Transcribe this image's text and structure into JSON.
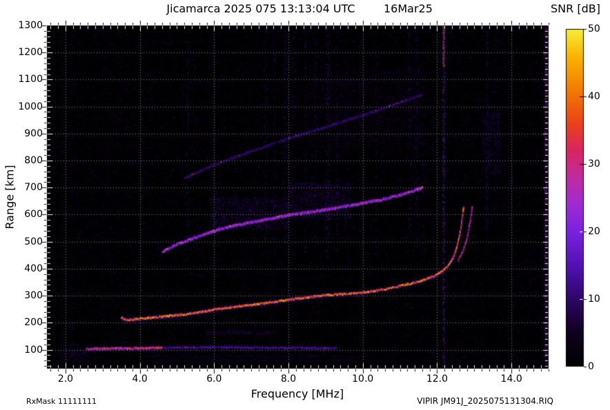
{
  "header": {
    "title": "Jicamarca 2025 075 13:13:04 UTC",
    "date": "16Mar25",
    "colorbar_title": "SNR [dB]"
  },
  "footer": {
    "rx_mask": "RxMask 11111111",
    "file_id": "VIPIR  JM91J_2025075131304.RIQ"
  },
  "axes": {
    "x_label": "Frequency [MHz]",
    "y_label": "Range [km]",
    "x_ticks": [
      {
        "v": 2,
        "label": "2.0"
      },
      {
        "v": 4,
        "label": "4.0"
      },
      {
        "v": 6,
        "label": "6.0"
      },
      {
        "v": 8,
        "label": "8.0"
      },
      {
        "v": 10,
        "label": "10.0"
      },
      {
        "v": 12,
        "label": "12.0"
      },
      {
        "v": 14,
        "label": "14.0"
      }
    ],
    "y_ticks": [
      {
        "v": 100,
        "label": "100"
      },
      {
        "v": 200,
        "label": "200"
      },
      {
        "v": 300,
        "label": "300"
      },
      {
        "v": 400,
        "label": "400"
      },
      {
        "v": 500,
        "label": "500"
      },
      {
        "v": 600,
        "label": "600"
      },
      {
        "v": 700,
        "label": "700"
      },
      {
        "v": 800,
        "label": "800"
      },
      {
        "v": 900,
        "label": "900"
      },
      {
        "v": 1000,
        "label": "1000"
      },
      {
        "v": 1100,
        "label": "1100"
      },
      {
        "v": 1200,
        "label": "1200"
      },
      {
        "v": 1300,
        "label": "1300"
      }
    ],
    "cb_ticks": [
      {
        "v": 0,
        "label": "0"
      },
      {
        "v": 10,
        "label": "10"
      },
      {
        "v": 20,
        "label": "20"
      },
      {
        "v": 30,
        "label": "30"
      },
      {
        "v": 40,
        "label": "40"
      },
      {
        "v": 50,
        "label": "50"
      }
    ]
  },
  "chart_data": {
    "type": "heatmap",
    "title": "Jicamarca 2025 075 13:13:04 UTC 16Mar25",
    "xlabel": "Frequency [MHz]",
    "ylabel": "Range [km]",
    "xlim": [
      1.5,
      15.0
    ],
    "ylim": [
      30,
      1300
    ],
    "grid": {
      "x_major_mhz": 2,
      "y_major_km": 100,
      "style": "dotted-light"
    },
    "colorbar": {
      "label": "SNR [dB]",
      "min": 0,
      "max": 50
    },
    "colormap": [
      {
        "v": 0,
        "c": "#000000"
      },
      {
        "v": 5,
        "c": "#10001f"
      },
      {
        "v": 10,
        "c": "#2e0668"
      },
      {
        "v": 15,
        "c": "#5212b4"
      },
      {
        "v": 20,
        "c": "#7b22e0"
      },
      {
        "v": 24,
        "c": "#9f2bd2"
      },
      {
        "v": 28,
        "c": "#c02ba0"
      },
      {
        "v": 32,
        "c": "#d92560"
      },
      {
        "v": 36,
        "c": "#e94318"
      },
      {
        "v": 41,
        "c": "#f37c00"
      },
      {
        "v": 46,
        "c": "#f9b500"
      },
      {
        "v": 50,
        "c": "#f4ef3a"
      }
    ],
    "traces": [
      {
        "name": "E-layer echo strong",
        "snr": 34,
        "core_km": 7,
        "halo_km": 22,
        "halo_d": 3,
        "sparkle": 0.1,
        "points": [
          [
            2.55,
            103
          ],
          [
            3.0,
            104
          ],
          [
            3.6,
            105
          ],
          [
            4.1,
            106
          ],
          [
            4.6,
            107
          ]
        ]
      },
      {
        "name": "E-layer echo weak tail",
        "snr": 16,
        "core_km": 6,
        "halo_km": 14,
        "halo_d": 2,
        "sparkle": 0.01,
        "points": [
          [
            4.6,
            107
          ],
          [
            5.6,
            108
          ],
          [
            6.6,
            108
          ],
          [
            7.6,
            107
          ],
          [
            8.6,
            106
          ],
          [
            9.3,
            105
          ]
        ]
      },
      {
        "name": "F-region O-mode first hop",
        "snr": 46,
        "core_km": 6,
        "halo_km": 26,
        "halo_d": 3,
        "sparkle": 0,
        "points": [
          [
            3.5,
            218
          ],
          [
            3.62,
            209
          ],
          [
            4.0,
            215
          ],
          [
            4.5,
            221
          ],
          [
            5.0,
            228
          ],
          [
            5.5,
            236
          ],
          [
            6.0,
            249
          ],
          [
            6.5,
            258
          ],
          [
            7.0,
            266
          ],
          [
            7.5,
            275
          ],
          [
            8.0,
            285
          ],
          [
            8.5,
            294
          ],
          [
            9.0,
            302
          ],
          [
            9.5,
            306
          ],
          [
            10.0,
            311
          ],
          [
            10.5,
            322
          ],
          [
            11.0,
            336
          ],
          [
            11.5,
            352
          ],
          [
            11.9,
            372
          ],
          [
            12.1,
            388
          ],
          [
            12.3,
            412
          ],
          [
            12.45,
            448
          ],
          [
            12.55,
            495
          ],
          [
            12.62,
            545
          ],
          [
            12.67,
            590
          ],
          [
            12.7,
            628
          ]
        ]
      },
      {
        "name": "F-region X-mode cusp",
        "snr": 36,
        "core_km": 5,
        "halo_km": 16,
        "halo_d": 2,
        "sparkle": 0,
        "points": [
          [
            12.55,
            430
          ],
          [
            12.68,
            465
          ],
          [
            12.78,
            505
          ],
          [
            12.85,
            550
          ],
          [
            12.9,
            595
          ],
          [
            12.93,
            628
          ]
        ]
      },
      {
        "name": "F-region second hop",
        "snr": 26,
        "core_km": 9,
        "halo_km": 40,
        "halo_d": 3,
        "halo_up": 0.7,
        "sparkle": 0.12,
        "points": [
          [
            4.6,
            462
          ],
          [
            5.0,
            490
          ],
          [
            5.5,
            516
          ],
          [
            6.0,
            540
          ],
          [
            6.5,
            558
          ],
          [
            7.0,
            572
          ],
          [
            7.5,
            585
          ],
          [
            8.0,
            598
          ],
          [
            8.5,
            608
          ],
          [
            9.0,
            618
          ],
          [
            9.5,
            630
          ],
          [
            10.0,
            642
          ],
          [
            10.5,
            656
          ],
          [
            11.0,
            672
          ],
          [
            11.3,
            685
          ],
          [
            11.6,
            700
          ]
        ]
      },
      {
        "name": "F-region third hop",
        "snr": 12,
        "core_km": 7,
        "halo_km": 22,
        "halo_d": 2,
        "halo_up": 0.5,
        "sparkle": 0.015,
        "points": [
          [
            5.2,
            735
          ],
          [
            6.0,
            785
          ],
          [
            7.0,
            835
          ],
          [
            8.0,
            882
          ],
          [
            9.0,
            925
          ],
          [
            10.0,
            968
          ],
          [
            11.0,
            1015
          ],
          [
            11.6,
            1045
          ]
        ]
      }
    ],
    "rfi": [
      {
        "f": 2.17,
        "w": 0.05,
        "r": [
          35,
          1300
        ],
        "snr": 11,
        "d": 0.3
      },
      {
        "f": 3.02,
        "w": 0.04,
        "r": [
          35,
          1300
        ],
        "snr": 8,
        "d": 0.15
      },
      {
        "f": 5.27,
        "w": 0.08,
        "r": [
          430,
          1300
        ],
        "snr": 15,
        "d": 0.5
      },
      {
        "f": 6.12,
        "w": 0.05,
        "r": [
          480,
          1100
        ],
        "snr": 11,
        "d": 0.3
      },
      {
        "f": 7.38,
        "w": 0.06,
        "r": [
          450,
          1300
        ],
        "snr": 14,
        "d": 0.45
      },
      {
        "f": 7.62,
        "w": 0.05,
        "r": [
          450,
          1300
        ],
        "snr": 13,
        "d": 0.4
      },
      {
        "f": 7.9,
        "w": 0.07,
        "r": [
          450,
          1300
        ],
        "snr": 15,
        "d": 0.5
      },
      {
        "f": 8.15,
        "w": 0.05,
        "r": [
          450,
          1300
        ],
        "snr": 13,
        "d": 0.4
      },
      {
        "f": 8.45,
        "w": 0.06,
        "r": [
          450,
          1300
        ],
        "snr": 14,
        "d": 0.45
      },
      {
        "f": 8.72,
        "w": 0.05,
        "r": [
          450,
          1300
        ],
        "snr": 13,
        "d": 0.35
      },
      {
        "f": 9.05,
        "w": 0.1,
        "r": [
          440,
          1300
        ],
        "snr": 18,
        "d": 0.7
      },
      {
        "f": 9.3,
        "w": 0.06,
        "r": [
          450,
          1300
        ],
        "snr": 14,
        "d": 0.45
      },
      {
        "f": 9.55,
        "w": 0.05,
        "r": [
          500,
          1300
        ],
        "snr": 12,
        "d": 0.3
      },
      {
        "f": 10.35,
        "w": 0.06,
        "r": [
          450,
          1300
        ],
        "snr": 13,
        "d": 0.35
      },
      {
        "f": 11.25,
        "w": 0.08,
        "r": [
          470,
          1300
        ],
        "snr": 15,
        "d": 0.5
      },
      {
        "f": 11.45,
        "w": 0.08,
        "r": [
          470,
          1300
        ],
        "snr": 15,
        "d": 0.5
      },
      {
        "f": 11.62,
        "w": 0.05,
        "r": [
          470,
          1250
        ],
        "snr": 13,
        "d": 0.35
      },
      {
        "f": 12.17,
        "w": 0.06,
        "r": [
          35,
          1300
        ],
        "snr": 24,
        "d": 1.1
      },
      {
        "f": 12.17,
        "w": 0.05,
        "r": [
          1150,
          1300
        ],
        "snr": 40,
        "d": 2.5
      },
      {
        "f": 13.33,
        "w": 0.07,
        "r": [
          550,
          1300
        ],
        "snr": 16,
        "d": 0.55
      },
      {
        "f": 13.55,
        "w": 0.05,
        "r": [
          600,
          1300
        ],
        "snr": 12,
        "d": 0.3
      },
      {
        "f": 14.92,
        "w": 0.07,
        "r": [
          35,
          1300
        ],
        "snr": 28,
        "d": 1.4
      }
    ],
    "patches": [
      {
        "f": [
          5.9,
          8.0
        ],
        "r": [
          545,
          665
        ],
        "snr": 13,
        "d": 0.28
      },
      {
        "f": [
          8.0,
          9.7
        ],
        "r": [
          585,
          720
        ],
        "snr": 13,
        "d": 0.28
      },
      {
        "f": [
          8.5,
          11.6
        ],
        "r": [
          850,
          1150
        ],
        "snr": 10,
        "d": 0.12
      },
      {
        "f": [
          13.2,
          13.7
        ],
        "r": [
          750,
          980
        ],
        "snr": 12,
        "d": 0.25
      },
      {
        "f": [
          5.8,
          7.6
        ],
        "r": [
          158,
          172
        ],
        "snr": 12,
        "d": 0.5
      },
      {
        "f": [
          4.4,
          9.9
        ],
        "r": [
          56,
          66
        ],
        "snr": 9,
        "d": 0.35
      },
      {
        "f": [
          4.2,
          10.1
        ],
        "r": [
          72,
          80
        ],
        "snr": 9,
        "d": 0.3
      },
      {
        "f": [
          1.5,
          15.0
        ],
        "r": [
          30,
          95
        ],
        "snr": 7,
        "d": 0.05
      },
      {
        "f": [
          1.8,
          2.6
        ],
        "r": [
          55,
          120
        ],
        "snr": 10,
        "d": 0.3
      }
    ],
    "noise": {
      "base_dots": 30000,
      "streaklets": 130
    }
  }
}
